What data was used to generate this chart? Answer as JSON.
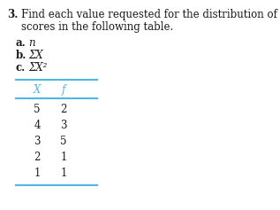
{
  "title_number": "3.",
  "title_text": "Find each value requested for the distribution of\nscores in the following table.",
  "items": [
    {
      "label": "a.",
      "text": "n"
    },
    {
      "label": "b.",
      "text": "ΣX"
    },
    {
      "label": "c.",
      "text": "ΣX²"
    }
  ],
  "col_headers": [
    "X",
    "f"
  ],
  "table_data": [
    [
      5,
      2
    ],
    [
      4,
      3
    ],
    [
      3,
      5
    ],
    [
      2,
      1
    ],
    [
      1,
      1
    ]
  ],
  "header_color": "#4db8e8",
  "line_color": "#4db8e8",
  "bg_color": "#ffffff",
  "text_color": "#1a1a1a",
  "title_fontsize": 8.5,
  "body_fontsize": 8.5,
  "table_fontsize": 8.5
}
